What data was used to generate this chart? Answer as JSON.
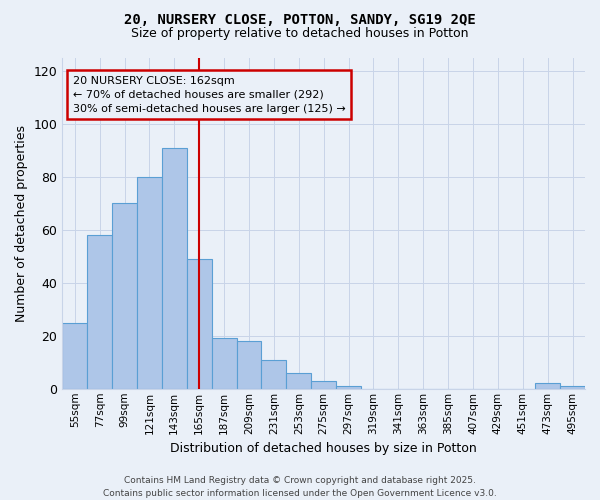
{
  "title1": "20, NURSERY CLOSE, POTTON, SANDY, SG19 2QE",
  "title2": "Size of property relative to detached houses in Potton",
  "xlabel": "Distribution of detached houses by size in Potton",
  "ylabel": "Number of detached properties",
  "bar_labels": [
    "55sqm",
    "77sqm",
    "99sqm",
    "121sqm",
    "143sqm",
    "165sqm",
    "187sqm",
    "209sqm",
    "231sqm",
    "253sqm",
    "275sqm",
    "297sqm",
    "319sqm",
    "341sqm",
    "363sqm",
    "385sqm",
    "407sqm",
    "429sqm",
    "451sqm",
    "473sqm",
    "495sqm"
  ],
  "bar_values": [
    25,
    58,
    70,
    80,
    91,
    49,
    19,
    18,
    11,
    6,
    3,
    1,
    0,
    0,
    0,
    0,
    0,
    0,
    0,
    2,
    1
  ],
  "bar_color": "#aec6e8",
  "bar_edge_color": "#5a9fd4",
  "vline_color": "#cc0000",
  "annotation_box_text": "20 NURSERY CLOSE: 162sqm\n← 70% of detached houses are smaller (292)\n30% of semi-detached houses are larger (125) →",
  "box_edge_color": "#cc0000",
  "ylim": [
    0,
    125
  ],
  "yticks": [
    0,
    20,
    40,
    60,
    80,
    100,
    120
  ],
  "grid_color": "#c8d4e8",
  "bg_color": "#eaf0f8",
  "footnote": "Contains HM Land Registry data © Crown copyright and database right 2025.\nContains public sector information licensed under the Open Government Licence v3.0."
}
